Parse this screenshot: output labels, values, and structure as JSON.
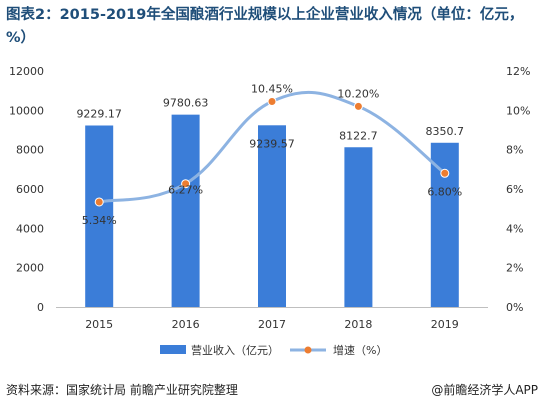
{
  "title": "图表2：2015-2019年全国酿酒行业规模以上企业营业收入情况（单位：亿元，%）",
  "source": "资料来源：国家统计局 前瞻产业研究院整理",
  "brand": "@前瞻经济学人APP",
  "chart_data": {
    "type": "bar",
    "categories": [
      "2015",
      "2016",
      "2017",
      "2018",
      "2019"
    ],
    "series": [
      {
        "name": "营业收入（亿元）",
        "type": "bar",
        "axis": "left",
        "values": [
          9229.17,
          9780.63,
          9239.57,
          8122.7,
          8350.7
        ],
        "labels": [
          "9229.17",
          "9780.63",
          "9239.57",
          "8122.7",
          "8350.7"
        ],
        "color": "#3b7dd8"
      },
      {
        "name": "增速（%）",
        "type": "line",
        "axis": "right",
        "values": [
          5.34,
          6.27,
          10.45,
          10.2,
          6.8
        ],
        "labels": [
          "5.34%",
          "6.27%",
          "10.45%",
          "10.20%",
          "6.80%"
        ],
        "color": "#8db3e2",
        "marker_color": "#ed7d31"
      }
    ],
    "y_left": {
      "ylim": [
        0,
        12000
      ],
      "ticks": [
        "0",
        "2000",
        "4000",
        "6000",
        "8000",
        "10000",
        "12000"
      ]
    },
    "y_right": {
      "ylim": [
        0,
        12
      ],
      "ticks": [
        "0%",
        "2%",
        "4%",
        "6%",
        "8%",
        "10%",
        "12%"
      ]
    },
    "grid": false,
    "legend_position": "bottom"
  }
}
